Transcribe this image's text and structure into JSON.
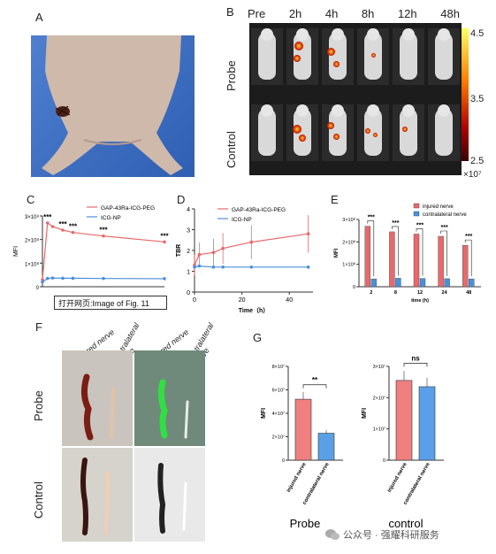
{
  "panels": {
    "A": "A",
    "B": "B",
    "C": "C",
    "D": "D",
    "E": "E",
    "F": "F",
    "G": "G"
  },
  "panel_b": {
    "time_labels": [
      "Pre",
      "2h",
      "4h",
      "8h",
      "12h",
      "48h"
    ],
    "row_labels": [
      "Probe",
      "Control"
    ],
    "colorbar_ticks": [
      "4.5",
      "3.5",
      "2.5"
    ],
    "colorbar_unit": "×10⁷"
  },
  "panel_f": {
    "col_labels": [
      "injured nerve",
      "contralateral nerve",
      "injured nerve",
      "contralateral nerve"
    ],
    "row_labels": [
      "Probe",
      "Control"
    ]
  },
  "tooltip": "打开网页:Image of Fig. 11",
  "watermark": "公众号 · 强耀科研服务",
  "chart_data": [
    {
      "id": "C",
      "type": "line",
      "ylabel": "MFI",
      "ytick_labels": [
        "0",
        "1×10⁸",
        "2×10⁸",
        "3×10⁸"
      ],
      "ylim": [
        0,
        300000000
      ],
      "x": [
        0,
        2,
        4,
        8,
        12,
        24,
        48
      ],
      "series": [
        {
          "name": "GAP-43Ra-ICG-PEG",
          "color": "#e8696b",
          "values": [
            30000000,
            270000000,
            255000000,
            240000000,
            230000000,
            215000000,
            190000000
          ]
        },
        {
          "name": "ICG-NP",
          "color": "#4a90d9",
          "values": [
            20000000,
            35000000,
            37000000,
            36000000,
            36000000,
            35000000,
            34000000
          ]
        }
      ],
      "annotations": [
        "***",
        "***",
        "***",
        "***",
        "***"
      ]
    },
    {
      "id": "D",
      "type": "line",
      "ylabel": "TBR",
      "xlabel": "Time（h）",
      "ytick_labels": [
        "0",
        "1",
        "2",
        "3",
        "4"
      ],
      "xtick_labels": [
        "0",
        "20",
        "40"
      ],
      "ylim": [
        0,
        4
      ],
      "xlim": [
        0,
        50
      ],
      "x": [
        0,
        2,
        8,
        12,
        24,
        48
      ],
      "series": [
        {
          "name": "GAP-43Ra-ICG-PEG",
          "color": "#e8696b",
          "values": [
            1.3,
            1.8,
            1.9,
            2.1,
            2.4,
            2.8
          ]
        },
        {
          "name": "ICG-NP",
          "color": "#4a90d9",
          "values": [
            1.2,
            1.25,
            1.2,
            1.2,
            1.2,
            1.2
          ]
        }
      ]
    },
    {
      "id": "E",
      "type": "bar",
      "ylabel": "MFI",
      "xlabel": "time (h)",
      "categories": [
        "2",
        "8",
        "12",
        "24",
        "48"
      ],
      "ytick_labels": [
        "0",
        "1×10⁸",
        "2×10⁸",
        "3×10⁸"
      ],
      "ylim": [
        0,
        300000000
      ],
      "series": [
        {
          "name": "injured nerve",
          "color": "#e8696b",
          "values": [
            270000000,
            245000000,
            235000000,
            225000000,
            185000000
          ]
        },
        {
          "name": "contralateral nerve",
          "color": "#4a90d9",
          "values": [
            35000000,
            38000000,
            37000000,
            36000000,
            35000000
          ]
        }
      ],
      "annotations": [
        "***",
        "***",
        "***",
        "***",
        "***"
      ]
    },
    {
      "id": "G-Probe",
      "type": "bar",
      "ylabel": "MFI",
      "title": "Probe",
      "categories": [
        "injured nerve",
        "contralateral nerve"
      ],
      "values": [
        52000000,
        23000000
      ],
      "colors": [
        "#f08080",
        "#5aa0e8"
      ],
      "ytick_labels": [
        "0",
        "2×10⁷",
        "4×10⁷",
        "6×10⁷",
        "8×10⁷"
      ],
      "ylim": [
        0,
        80000000
      ],
      "significance": "**"
    },
    {
      "id": "G-control",
      "type": "bar",
      "ylabel": "MFI",
      "title": "control",
      "categories": [
        "injured nerve",
        "contralateral nerve"
      ],
      "values": [
        25500000,
        23500000
      ],
      "colors": [
        "#f08080",
        "#5aa0e8"
      ],
      "ytick_labels": [
        "0",
        "1×10⁷",
        "2×10⁷",
        "3×10⁷"
      ],
      "ylim": [
        0,
        30000000
      ],
      "significance": "ns"
    }
  ]
}
